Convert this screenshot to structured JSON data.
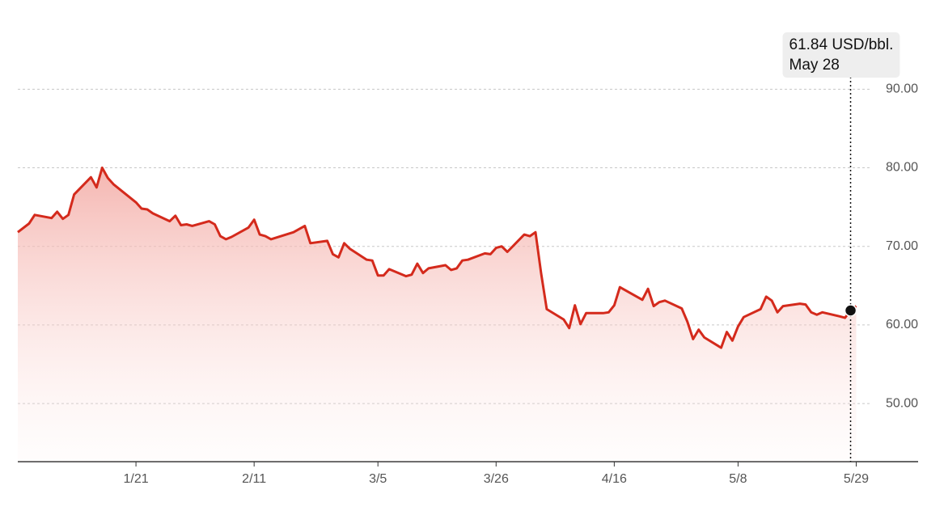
{
  "chart_data": {
    "type": "area-line",
    "x": [
      "12/31",
      "1/2",
      "1/3",
      "1/6",
      "1/7",
      "1/8",
      "1/9",
      "1/10",
      "1/13",
      "1/14",
      "1/15",
      "1/16",
      "1/17",
      "1/21",
      "1/22",
      "1/23",
      "1/24",
      "1/27",
      "1/28",
      "1/29",
      "1/30",
      "1/31",
      "2/3",
      "2/4",
      "2/5",
      "2/6",
      "2/7",
      "2/10",
      "2/11",
      "2/12",
      "2/13",
      "2/14",
      "2/18",
      "2/19",
      "2/20",
      "2/21",
      "2/24",
      "2/25",
      "2/26",
      "2/27",
      "2/28",
      "3/3",
      "3/4",
      "3/5",
      "3/6",
      "3/7",
      "3/10",
      "3/11",
      "3/12",
      "3/13",
      "3/14",
      "3/17",
      "3/18",
      "3/19",
      "3/20",
      "3/21",
      "3/24",
      "3/25",
      "3/26",
      "3/27",
      "3/28",
      "3/31",
      "4/1",
      "4/2",
      "4/3",
      "4/4",
      "4/7",
      "4/8",
      "4/9",
      "4/10",
      "4/11",
      "4/14",
      "4/15",
      "4/16",
      "4/17",
      "4/21",
      "4/22",
      "4/23",
      "4/24",
      "4/25",
      "4/28",
      "4/29",
      "4/30",
      "5/1",
      "5/2",
      "5/5",
      "5/6",
      "5/7",
      "5/8",
      "5/9",
      "5/12",
      "5/13",
      "5/14",
      "5/15",
      "5/16",
      "5/19",
      "5/20",
      "5/21",
      "5/22",
      "5/23",
      "5/26",
      "5/27",
      "5/28",
      "5/29"
    ],
    "series": [
      {
        "color": "#d42a1c",
        "values": [
          71.8,
          72.9,
          74.0,
          73.6,
          74.4,
          73.5,
          74.0,
          76.6,
          78.8,
          77.5,
          80.0,
          78.7,
          77.9,
          75.6,
          74.8,
          74.7,
          74.2,
          73.2,
          73.9,
          72.7,
          72.8,
          72.6,
          73.2,
          72.8,
          71.3,
          70.9,
          71.2,
          72.4,
          73.4,
          71.5,
          71.3,
          70.9,
          71.8,
          72.2,
          72.6,
          70.4,
          70.7,
          69.0,
          68.6,
          70.4,
          69.7,
          68.3,
          68.2,
          66.3,
          66.3,
          67.1,
          66.2,
          66.4,
          67.8,
          66.6,
          67.2,
          67.6,
          67.0,
          67.2,
          68.2,
          68.3,
          69.1,
          69.0,
          69.8,
          70.0,
          69.3,
          71.5,
          71.3,
          71.8,
          66.6,
          62.0,
          60.7,
          59.6,
          62.5,
          60.1,
          61.5,
          61.5,
          61.6,
          62.5,
          64.8,
          63.2,
          64.6,
          62.4,
          62.9,
          63.1,
          62.1,
          60.4,
          58.2,
          59.4,
          58.4,
          57.1,
          59.1,
          58.0,
          59.8,
          61.0,
          62.0,
          63.6,
          63.1,
          61.6,
          62.4,
          62.7,
          62.6,
          61.6,
          61.3,
          61.6,
          61.1,
          60.9,
          61.84,
          62.4
        ]
      }
    ],
    "xlim": [
      "12/31",
      "6/9"
    ],
    "xticks": [
      "1/21",
      "2/11",
      "3/5",
      "3/26",
      "4/16",
      "5/8",
      "5/29"
    ],
    "ylim": [
      42.6,
      96
    ],
    "yticks": [
      {
        "value": 50,
        "label": "50.00"
      },
      {
        "value": 60,
        "label": "60.00"
      },
      {
        "value": 70,
        "label": "70.00"
      },
      {
        "value": 80,
        "label": "80.00"
      },
      {
        "value": 90,
        "label": "90.00"
      }
    ],
    "grid": true,
    "highlight": {
      "x": "5/28",
      "value": 61.84,
      "label": "61.84 USD/bbl.",
      "date": "May 28"
    }
  }
}
